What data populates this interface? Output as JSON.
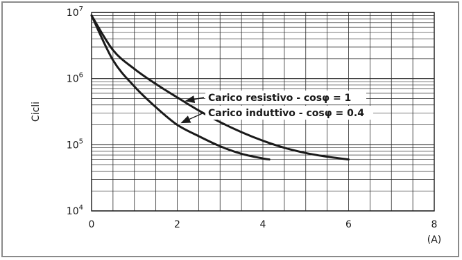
{
  "chart_data": {
    "type": "line",
    "title": "",
    "ylabel": "Cicli",
    "xunit": "(A)",
    "xlim": [
      0,
      8
    ],
    "ylim": [
      10000,
      10000000
    ],
    "yscale": "log",
    "grid": true,
    "x_ticks": [
      "0",
      "2",
      "4",
      "6",
      "8"
    ],
    "y_ticks": [
      {
        "base": "10",
        "exp": "4"
      },
      {
        "base": "10",
        "exp": "5"
      },
      {
        "base": "10",
        "exp": "6"
      },
      {
        "base": "10",
        "exp": "7"
      }
    ],
    "series": [
      {
        "name": "Carico resistivo - cosφ = 1",
        "x": [
          0,
          0.5,
          1,
          1.5,
          2,
          2.5,
          3,
          3.5,
          4,
          4.5,
          5,
          5.5,
          6
        ],
        "y": [
          9000000,
          2700000,
          1400000,
          830000,
          520000,
          330000,
          220000,
          155000,
          115000,
          90000,
          75000,
          66000,
          60000
        ]
      },
      {
        "name": "Carico induttivo - cosφ = 0.4",
        "x": [
          0,
          0.5,
          1,
          1.5,
          2,
          2.5,
          3,
          3.5,
          4,
          4.15
        ],
        "y": [
          9000000,
          1900000,
          760000,
          370000,
          200000,
          135000,
          95000,
          73000,
          62000,
          60000
        ]
      }
    ],
    "annotations": [
      {
        "text": "Carico resistivo - cosφ = 1",
        "arrow_to": {
          "x": 2.2,
          "y": 460000
        }
      },
      {
        "text": "Carico induttivo - cosφ = 0.4",
        "arrow_to": {
          "x": 2.1,
          "y": 215000
        }
      }
    ]
  }
}
